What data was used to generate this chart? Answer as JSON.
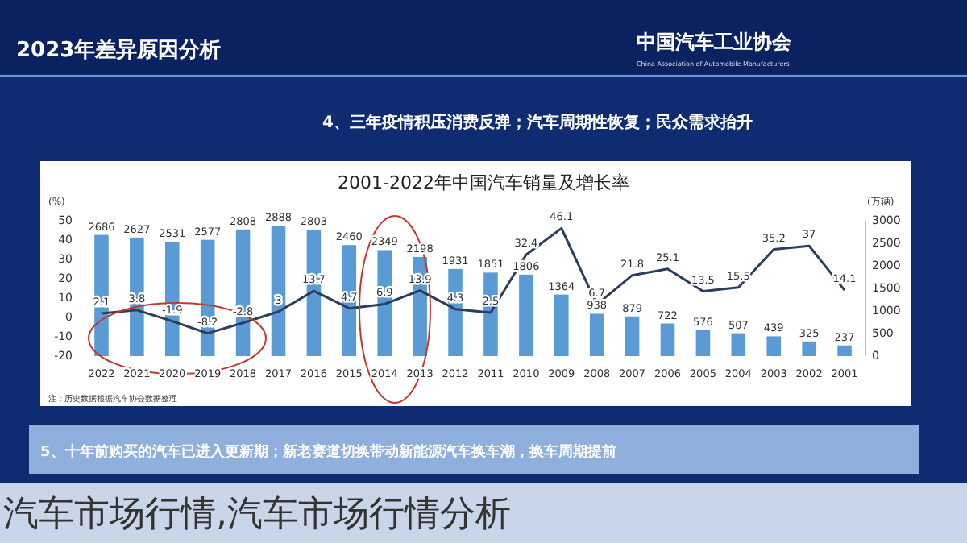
{
  "chart_data": {
    "type": "bar",
    "title": "2001-2022年中国汽车销量及增长率",
    "subtitle": "2023年差异原因分析",
    "ylabel": "(%)",
    "y2label": "(万辆)",
    "categories": [
      "2022",
      "2021",
      "2020",
      "2019",
      "2018",
      "2017",
      "2016",
      "2015",
      "2014",
      "2013",
      "2012",
      "2011",
      "2010",
      "2009",
      "2008",
      "2007",
      "2006",
      "2005",
      "2004",
      "2003",
      "2002",
      "2001"
    ],
    "series": [
      {
        "type": "bar",
        "axis": "y2",
        "color": "#5b9bd5",
        "values": [
          2686,
          2627,
          2531,
          2577,
          2808,
          2888,
          2803,
          2460,
          2349,
          2198,
          1931,
          1851,
          1806,
          1364,
          938,
          879,
          722,
          576,
          507,
          439,
          325,
          237
        ]
      },
      {
        "type": "line",
        "axis": "y",
        "color": "#2e3d5c",
        "values": [
          2.1,
          3.8,
          -1.9,
          -8.2,
          -2.8,
          3.0,
          13.7,
          4.7,
          6.9,
          13.9,
          4.3,
          2.5,
          32.4,
          46.1,
          6.7,
          21.8,
          25.1,
          13.5,
          15.5,
          35.2,
          37,
          14.1
        ]
      }
    ],
    "ylim": [
      -20,
      50
    ],
    "yticks": [
      -20,
      -10,
      0,
      10,
      20,
      30,
      40,
      50
    ],
    "y2lim": [
      0,
      3000
    ],
    "y2ticks": [
      0,
      500,
      1000,
      1500,
      2000,
      2500,
      3000
    ],
    "data_labels": true,
    "grid": false,
    "marker": "none",
    "line_style": "solid",
    "annotations": [
      "中国汽车工业协会",
      "China Association of Automobile Manufacturers",
      "4、三年疫情积压消费反弹；汽车周期性恢复；民众需求抬升",
      "注：历史数据根据汽车协会数据整理",
      "5、十年前购买的汽车已进入更新期；新老赛道切换带动新能源汽车换车潮，换车周期提前",
      "汽车市场行情,汽车市场行情分析"
    ]
  }
}
